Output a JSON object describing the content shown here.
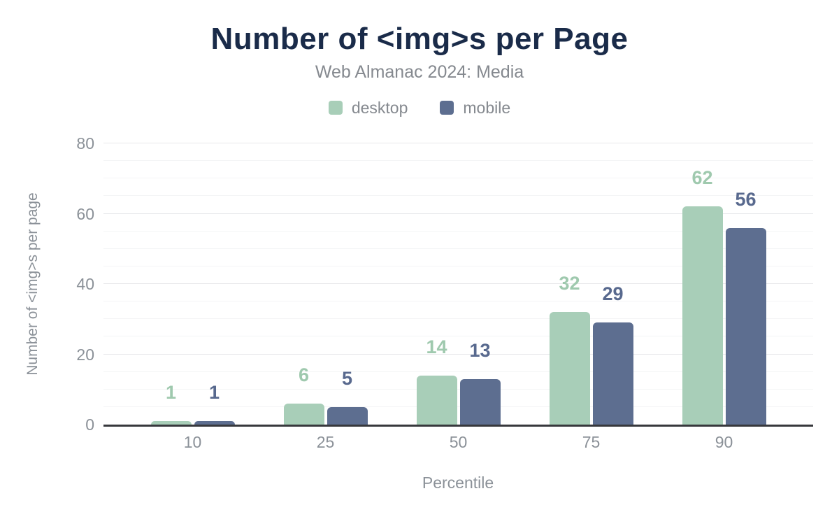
{
  "chart_data": {
    "type": "bar",
    "title": "Number of <img>s per Page",
    "subtitle": "Web Almanac 2024: Media",
    "categories": [
      "10",
      "25",
      "50",
      "75",
      "90"
    ],
    "series": [
      {
        "name": "desktop",
        "color": "#a8ceb8",
        "label_color": "#9fc9ae",
        "values": [
          1,
          6,
          14,
          32,
          62
        ]
      },
      {
        "name": "mobile",
        "color": "#5d6e90",
        "label_color": "#58698e",
        "values": [
          1,
          5,
          13,
          29,
          56
        ]
      }
    ],
    "xlabel": "Percentile",
    "ylabel": "Number of <img>s per page",
    "ylim": [
      0,
      80
    ],
    "yticks": [
      0,
      20,
      40,
      60,
      80
    ],
    "minor_grid_step": 5,
    "grid": true,
    "legend_position": "top"
  },
  "colors": {
    "title": "#1a2b49",
    "subtitle": "#85898f",
    "axis_text": "#8b9198",
    "axis_line": "#37383c",
    "grid_major": "#e7e8ea",
    "grid_minor": "#f4f5f6",
    "background": "#ffffff"
  }
}
